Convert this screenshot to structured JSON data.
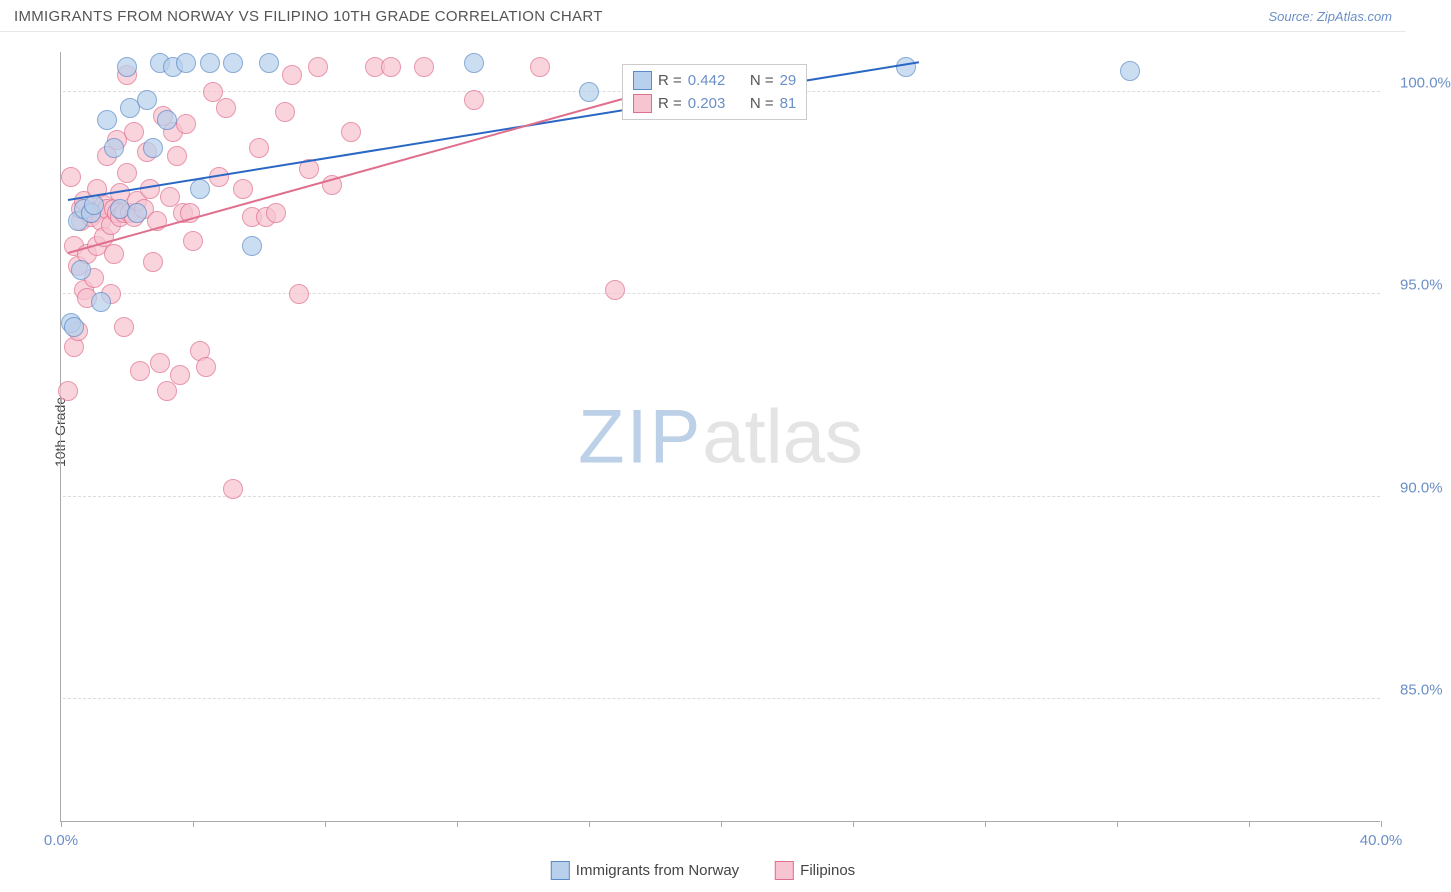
{
  "header": {
    "title": "IMMIGRANTS FROM NORWAY VS FILIPINO 10TH GRADE CORRELATION CHART",
    "source": "Source: ZipAtlas.com"
  },
  "axes": {
    "ylabel": "10th Grade",
    "xmin": 0.0,
    "xmax": 40.0,
    "ymin": 82.0,
    "ymax": 101.0,
    "xticks": [
      0.0,
      4.0,
      8.0,
      12.0,
      16.0,
      20.0,
      24.0,
      28.0,
      32.0,
      36.0,
      40.0
    ],
    "xtick_labels_shown": {
      "0": "0.0%",
      "40": "40.0%"
    },
    "yticks": [
      85.0,
      90.0,
      95.0,
      100.0
    ],
    "ytick_labels": {
      "85": "85.0%",
      "90": "90.0%",
      "95": "95.0%",
      "100": "100.0%"
    },
    "grid_color": "#dcdcdc",
    "axis_color": "#aaaaaa"
  },
  "series": {
    "norway": {
      "label": "Immigrants from Norway",
      "fill": "#b8d0ec",
      "stroke": "#5a8ac7",
      "r_value": "0.442",
      "n_value": "29",
      "marker_radius": 10,
      "trend": {
        "x1": 0.2,
        "y1": 97.3,
        "x2": 26.0,
        "y2": 100.7,
        "color": "#2a67c4"
      },
      "points": [
        [
          0.3,
          94.3
        ],
        [
          0.4,
          94.2
        ],
        [
          0.5,
          96.8
        ],
        [
          0.6,
          95.6
        ],
        [
          0.7,
          97.1
        ],
        [
          0.9,
          97.0
        ],
        [
          1.0,
          97.2
        ],
        [
          1.2,
          94.8
        ],
        [
          1.4,
          99.3
        ],
        [
          1.6,
          98.6
        ],
        [
          1.8,
          97.1
        ],
        [
          2.0,
          100.6
        ],
        [
          2.1,
          99.6
        ],
        [
          2.3,
          97.0
        ],
        [
          2.6,
          99.8
        ],
        [
          2.8,
          98.6
        ],
        [
          3.0,
          100.7
        ],
        [
          3.2,
          99.3
        ],
        [
          3.4,
          100.6
        ],
        [
          3.8,
          100.7
        ],
        [
          4.2,
          97.6
        ],
        [
          4.5,
          100.7
        ],
        [
          5.2,
          100.7
        ],
        [
          5.8,
          96.2
        ],
        [
          6.3,
          100.7
        ],
        [
          12.5,
          100.7
        ],
        [
          16.0,
          100.0
        ],
        [
          25.6,
          100.6
        ],
        [
          32.4,
          100.5
        ]
      ]
    },
    "filipino": {
      "label": "Filipinos",
      "fill": "#f7c4d1",
      "stroke": "#e06f8d",
      "r_value": "0.203",
      "n_value": "81",
      "marker_radius": 10,
      "trend": {
        "x1": 0.2,
        "y1": 96.0,
        "x2": 17.0,
        "y2": 99.8,
        "color": "#e06f8d"
      },
      "points": [
        [
          0.2,
          92.6
        ],
        [
          0.3,
          97.9
        ],
        [
          0.4,
          93.7
        ],
        [
          0.4,
          96.2
        ],
        [
          0.5,
          95.7
        ],
        [
          0.5,
          94.1
        ],
        [
          0.6,
          96.8
        ],
        [
          0.6,
          97.1
        ],
        [
          0.7,
          95.1
        ],
        [
          0.7,
          97.3
        ],
        [
          0.8,
          94.9
        ],
        [
          0.8,
          96.0
        ],
        [
          0.9,
          96.9
        ],
        [
          0.9,
          97.0
        ],
        [
          1.0,
          95.4
        ],
        [
          1.0,
          97.0
        ],
        [
          1.1,
          97.6
        ],
        [
          1.1,
          96.2
        ],
        [
          1.2,
          97.1
        ],
        [
          1.2,
          96.8
        ],
        [
          1.3,
          96.4
        ],
        [
          1.3,
          97.2
        ],
        [
          1.4,
          98.4
        ],
        [
          1.4,
          97.1
        ],
        [
          1.5,
          96.7
        ],
        [
          1.5,
          95.0
        ],
        [
          1.6,
          96.0
        ],
        [
          1.6,
          97.1
        ],
        [
          1.7,
          97.0
        ],
        [
          1.7,
          98.8
        ],
        [
          1.8,
          96.9
        ],
        [
          1.8,
          97.5
        ],
        [
          1.9,
          94.2
        ],
        [
          1.9,
          97.0
        ],
        [
          2.0,
          100.4
        ],
        [
          2.0,
          98.0
        ],
        [
          2.1,
          97.0
        ],
        [
          2.2,
          99.0
        ],
        [
          2.2,
          96.9
        ],
        [
          2.3,
          97.3
        ],
        [
          2.4,
          93.1
        ],
        [
          2.5,
          97.1
        ],
        [
          2.6,
          98.5
        ],
        [
          2.7,
          97.6
        ],
        [
          2.8,
          95.8
        ],
        [
          2.9,
          96.8
        ],
        [
          3.0,
          93.3
        ],
        [
          3.1,
          99.4
        ],
        [
          3.2,
          92.6
        ],
        [
          3.3,
          97.4
        ],
        [
          3.4,
          99.0
        ],
        [
          3.5,
          98.4
        ],
        [
          3.6,
          93.0
        ],
        [
          3.7,
          97.0
        ],
        [
          3.8,
          99.2
        ],
        [
          3.9,
          97.0
        ],
        [
          4.0,
          96.3
        ],
        [
          4.2,
          93.6
        ],
        [
          4.4,
          93.2
        ],
        [
          4.6,
          100.0
        ],
        [
          4.8,
          97.9
        ],
        [
          5.0,
          99.6
        ],
        [
          5.2,
          90.2
        ],
        [
          5.5,
          97.6
        ],
        [
          5.8,
          96.9
        ],
        [
          6.0,
          98.6
        ],
        [
          6.2,
          96.9
        ],
        [
          6.5,
          97.0
        ],
        [
          6.8,
          99.5
        ],
        [
          7.0,
          100.4
        ],
        [
          7.2,
          95.0
        ],
        [
          7.5,
          98.1
        ],
        [
          7.8,
          100.6
        ],
        [
          8.2,
          97.7
        ],
        [
          8.8,
          99.0
        ],
        [
          9.5,
          100.6
        ],
        [
          10.0,
          100.6
        ],
        [
          11.0,
          100.6
        ],
        [
          12.5,
          99.8
        ],
        [
          14.5,
          100.6
        ],
        [
          16.8,
          95.1
        ]
      ]
    }
  },
  "legend_top": {
    "r_label": "R =",
    "n_label": "N =",
    "label_color": "#555555",
    "value_color": "#6b8fc7"
  },
  "bottom_legend": {
    "items": [
      "norway",
      "filipino"
    ]
  },
  "watermark": {
    "part1": "ZIP",
    "part2": "atlas"
  }
}
